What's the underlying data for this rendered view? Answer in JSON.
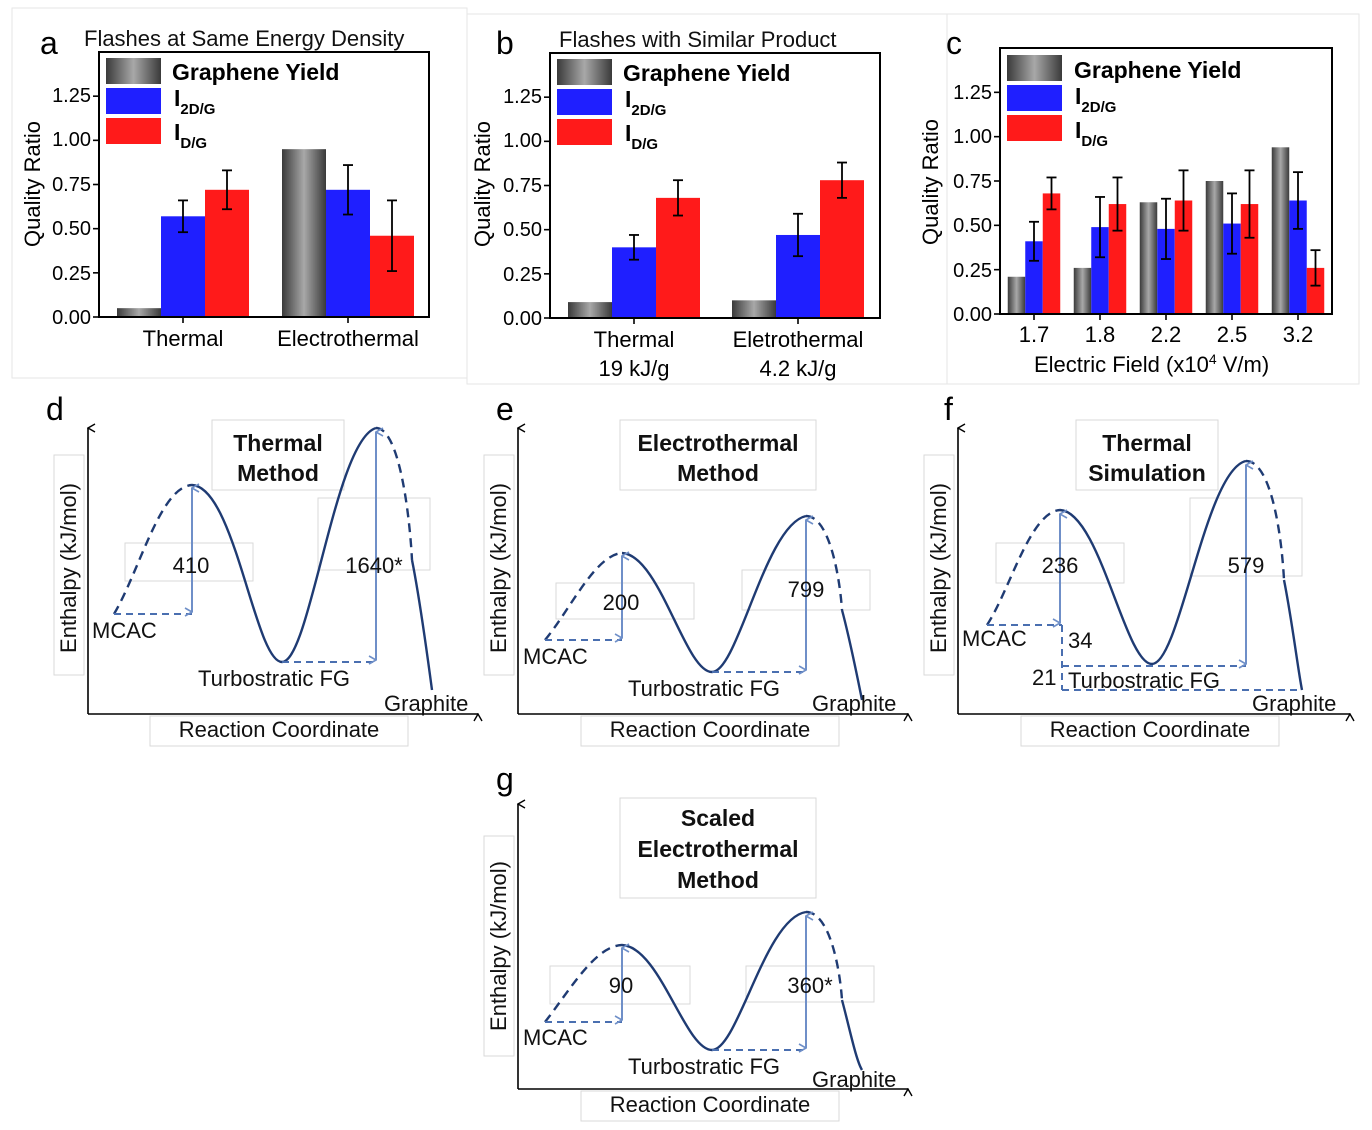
{
  "panels": {
    "a": {
      "letter": "a",
      "title": "Flashes at Same Energy Density"
    },
    "b": {
      "letter": "b",
      "title": "Flashes with Similar Product"
    },
    "c": {
      "letter": "c",
      "title": ""
    },
    "d": {
      "letter": "d"
    },
    "e": {
      "letter": "e"
    },
    "f": {
      "letter": "f"
    },
    "g": {
      "letter": "g"
    }
  },
  "legend": {
    "yield": "Graphene Yield",
    "i2d_main": "I",
    "i2d_sub": "2D/G",
    "idg_main": "I",
    "idg_sub": "D/G"
  },
  "colors": {
    "yield": "#6e6e6e",
    "i2d": "#1f1fff",
    "idg": "#ff1a1a"
  },
  "chart_data": [
    {
      "id": "a",
      "type": "bar",
      "title": "Flashes at Same Energy Density",
      "ylabel": "Quality Ratio",
      "xlabel": "",
      "ylim": [
        0,
        1.5
      ],
      "yticks": [
        "0.00",
        "0.25",
        "0.50",
        "0.75",
        "1.00",
        "1.25"
      ],
      "categories": [
        "Thermal",
        "Electrothermal"
      ],
      "category_sublabels": [
        "",
        ""
      ],
      "series": [
        {
          "name": "Graphene Yield",
          "values": [
            0.05,
            0.95
          ],
          "errors": [
            0,
            0
          ]
        },
        {
          "name": "I2D/G",
          "values": [
            0.57,
            0.72
          ],
          "errors": [
            0.09,
            0.14
          ]
        },
        {
          "name": "ID/G",
          "values": [
            0.72,
            0.46
          ],
          "errors": [
            0.11,
            0.2
          ]
        }
      ]
    },
    {
      "id": "b",
      "type": "bar",
      "title": "Flashes with Similar Product",
      "ylabel": "Quality Ratio",
      "xlabel": "",
      "ylim": [
        0,
        1.5
      ],
      "yticks": [
        "0.00",
        "0.25",
        "0.50",
        "0.75",
        "1.00",
        "1.25"
      ],
      "categories": [
        "Thermal",
        "Eletrothermal"
      ],
      "category_sublabels": [
        "19 kJ/g",
        "4.2 kJ/g"
      ],
      "series": [
        {
          "name": "Graphene Yield",
          "values": [
            0.09,
            0.1
          ],
          "errors": [
            0,
            0
          ]
        },
        {
          "name": "I2D/G",
          "values": [
            0.4,
            0.47
          ],
          "errors": [
            0.07,
            0.12
          ]
        },
        {
          "name": "ID/G",
          "values": [
            0.68,
            0.78
          ],
          "errors": [
            0.1,
            0.1
          ]
        }
      ]
    },
    {
      "id": "c",
      "type": "bar",
      "title": "",
      "ylabel": "Quality Ratio",
      "xlabel": "Electric Field (x10",
      "xlabel_sup": "4",
      "xlabel_tail": " V/m)",
      "ylim": [
        0,
        1.5
      ],
      "yticks": [
        "0.00",
        "0.25",
        "0.50",
        "0.75",
        "1.00",
        "1.25"
      ],
      "categories": [
        "1.7",
        "1.8",
        "2.2",
        "2.5",
        "3.2"
      ],
      "category_sublabels": [
        "",
        "",
        "",
        "",
        ""
      ],
      "series": [
        {
          "name": "Graphene Yield",
          "values": [
            0.21,
            0.26,
            0.63,
            0.75,
            0.94
          ],
          "errors": [
            0,
            0,
            0,
            0,
            0
          ]
        },
        {
          "name": "I2D/G",
          "values": [
            0.41,
            0.49,
            0.48,
            0.51,
            0.64
          ],
          "errors": [
            0.11,
            0.17,
            0.17,
            0.17,
            0.16
          ]
        },
        {
          "name": "ID/G",
          "values": [
            0.68,
            0.62,
            0.64,
            0.62,
            0.26
          ],
          "errors": [
            0.09,
            0.15,
            0.17,
            0.19,
            0.1
          ]
        }
      ]
    }
  ],
  "diagrams": {
    "common": {
      "ylabel": "Enthalpy (kJ/mol)",
      "xlabel": "Reaction Coordinate",
      "start": "MCAC",
      "middle": "Turbostratic FG",
      "end": "Graphite"
    },
    "d": {
      "title1": "Thermal",
      "title2": "Method",
      "barrier1": "410",
      "barrier2": "1640*"
    },
    "e": {
      "title1": "Electrothermal",
      "title2": "Method",
      "barrier1": "200",
      "barrier2": "799"
    },
    "f": {
      "title1": "Thermal",
      "title2": "Simulation",
      "barrier1": "236",
      "barrier2": "579",
      "delta1": "34",
      "delta2": "21"
    },
    "g": {
      "title1": "Scaled",
      "title2": "Electrothermal",
      "title3": "Method",
      "barrier1": "90",
      "barrier2": "360*"
    }
  }
}
